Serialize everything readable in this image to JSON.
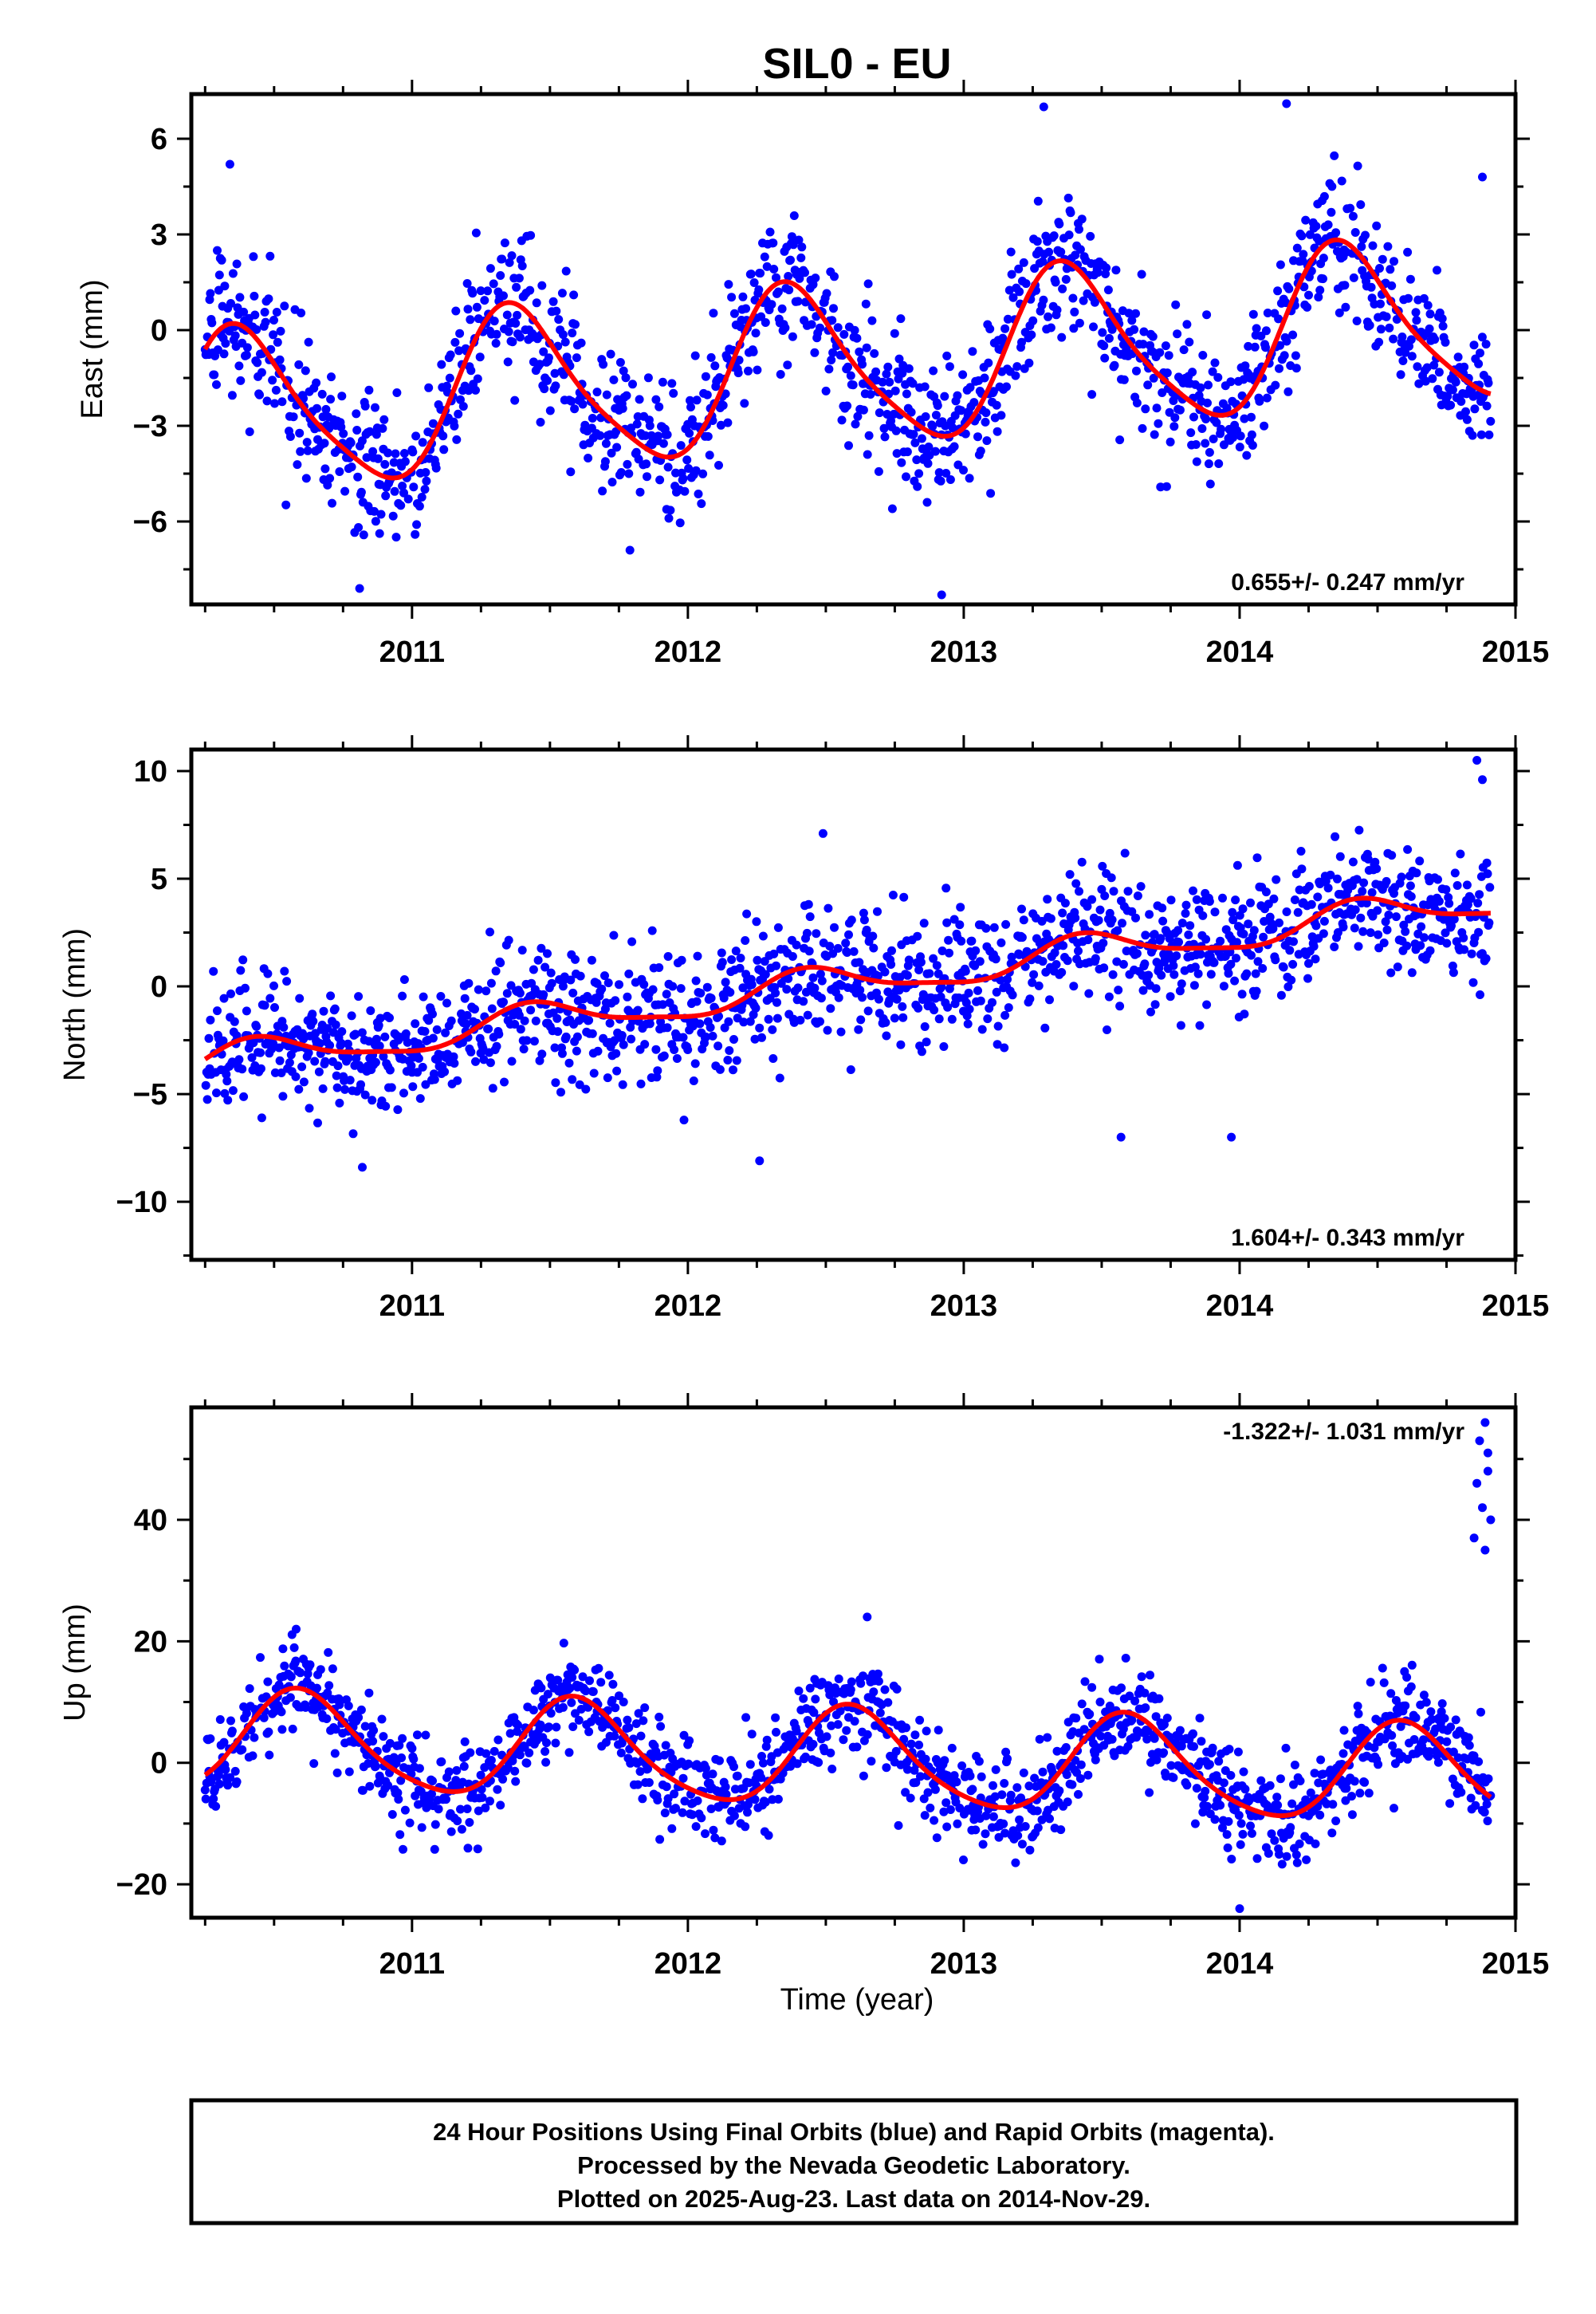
{
  "title": "SIL0 - EU",
  "xlabel": "Time (year)",
  "footer": {
    "line1": "24 Hour Positions Using Final Orbits (blue) and Rapid Orbits (magenta).",
    "line2": "Processed by the Nevada Geodetic Laboratory.",
    "line3": "Plotted on 2025-Aug-23. Last data on 2014-Nov-29."
  },
  "colors": {
    "final_orbits": "#0000ff",
    "model": "#ff0000"
  },
  "chart_data": [
    {
      "type": "scatter",
      "ylabel": "East (mm)",
      "rate_label": "0.655+/- 0.247 mm/yr",
      "xlim": [
        2010.2,
        2015.0
      ],
      "ylim": [
        -8.6,
        7.4
      ],
      "xticks": [
        2011,
        2012,
        2013,
        2014,
        2015
      ],
      "yticks": [
        -6,
        -3,
        0,
        3,
        6
      ],
      "grid": false,
      "data_range": [
        2010.25,
        2014.91
      ],
      "model": {
        "offset": -1.15,
        "rate": 0.655,
        "t0": 2012.58,
        "annual_amp": 2.5,
        "annual_peak": 2010.38,
        "semiannual_amp": 0.45,
        "semiannual_peak": 2010.3
      },
      "noise_sd": 1.1,
      "outliers": [
        [
          2010.34,
          5.2
        ],
        [
          2010.81,
          -8.1
        ],
        [
          2011.79,
          -6.9
        ],
        [
          2012.92,
          -8.3
        ],
        [
          2013.29,
          7.0
        ],
        [
          2014.17,
          7.1
        ],
        [
          2014.88,
          4.8
        ]
      ]
    },
    {
      "type": "scatter",
      "ylabel": "North (mm)",
      "rate_label": "1.604+/- 0.343 mm/yr",
      "xlim": [
        2010.2,
        2015.0
      ],
      "ylim": [
        -12.7,
        11.0
      ],
      "xticks": [
        2011,
        2012,
        2013,
        2014,
        2015
      ],
      "yticks": [
        -10,
        -5,
        0,
        5,
        10
      ],
      "grid": false,
      "data_range": [
        2010.25,
        2014.91
      ],
      "model": {
        "offset": -3.55,
        "rate": 1.604,
        "t0": 2010.25,
        "annual_amp": 0.75,
        "annual_peak": 2010.45,
        "semiannual_amp": 0.2,
        "semiannual_peak": 2010.4
      },
      "noise_sd": 1.5,
      "outliers": [
        [
          2010.82,
          -8.4
        ],
        [
          2012.26,
          -8.1
        ],
        [
          2012.49,
          7.1
        ],
        [
          2013.57,
          -7.0
        ],
        [
          2013.97,
          -7.0
        ],
        [
          2014.86,
          10.5
        ],
        [
          2014.88,
          9.6
        ]
      ]
    },
    {
      "type": "scatter",
      "ylabel": "Up (mm)",
      "rate_label": "-1.322+/- 1.031 mm/yr",
      "xlim": [
        2010.2,
        2015.0
      ],
      "ylim": [
        -25.5,
        58.5
      ],
      "xticks": [
        2011,
        2012,
        2013,
        2014,
        2015
      ],
      "yticks": [
        -20,
        0,
        20,
        40
      ],
      "grid": false,
      "data_range": [
        2010.25,
        2014.91
      ],
      "model": {
        "offset": 0.6,
        "rate": -1.322,
        "t0": 2012.58,
        "annual_amp": 8.0,
        "annual_peak": 2010.6,
        "semiannual_amp": 1.2,
        "semiannual_peak": 2010.55
      },
      "noise_sd": 4.0,
      "outliers": [
        [
          2010.58,
          22.0
        ],
        [
          2012.65,
          24.0
        ],
        [
          2014.0,
          -24.0
        ],
        [
          2014.85,
          37.0
        ],
        [
          2014.86,
          46.0
        ],
        [
          2014.87,
          53.0
        ],
        [
          2014.88,
          42.0
        ],
        [
          2014.89,
          56.0
        ],
        [
          2014.9,
          48.0
        ],
        [
          2014.91,
          40.0
        ],
        [
          2014.9,
          51.0
        ],
        [
          2014.89,
          35.0
        ]
      ]
    }
  ]
}
